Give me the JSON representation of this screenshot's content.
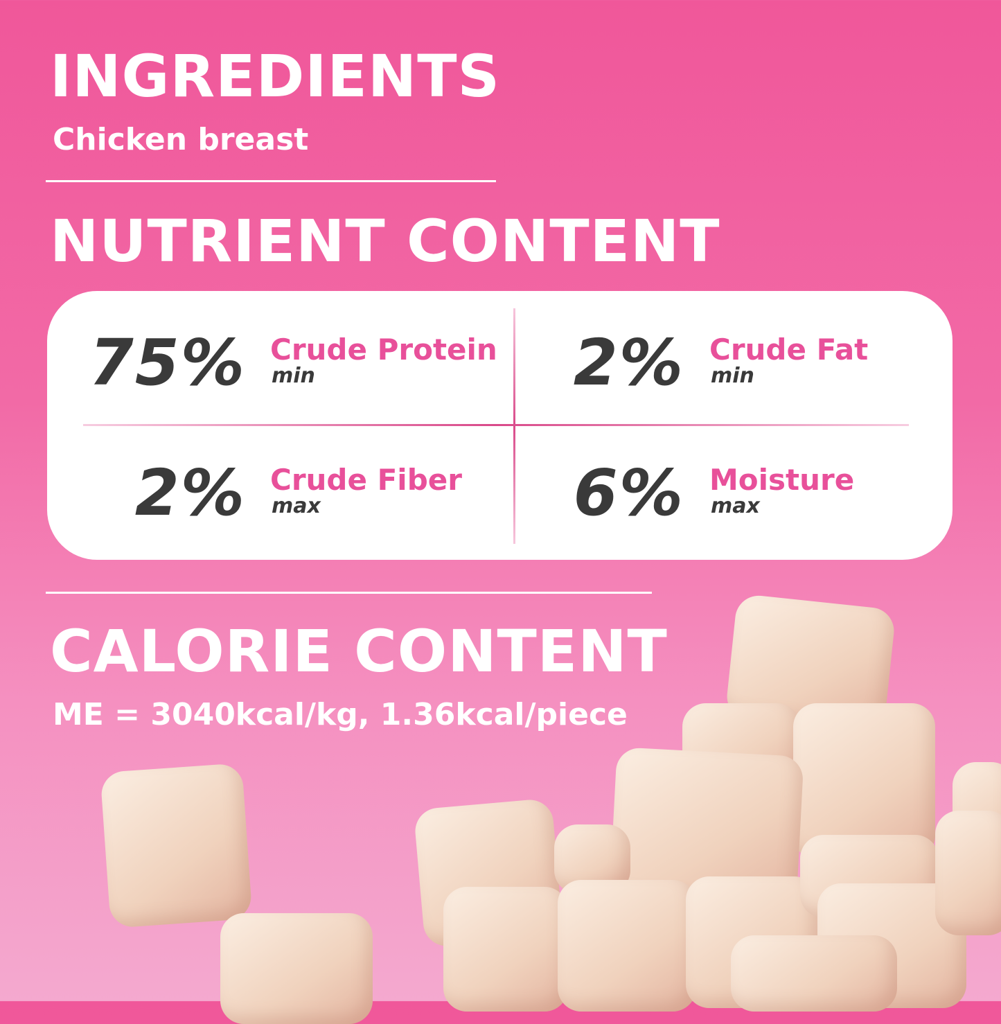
{
  "ingredients": {
    "title": "INGREDIENTS",
    "text": "Chicken breast"
  },
  "nutrients": {
    "title": "NUTRIENT CONTENT",
    "items": [
      {
        "value": "75%",
        "label": "Crude Protein",
        "qualifier": "min"
      },
      {
        "value": "2%",
        "label": "Crude Fat",
        "qualifier": "min"
      },
      {
        "value": "2%",
        "label": "Crude Fiber",
        "qualifier": "max"
      },
      {
        "value": "6%",
        "label": "Moisture",
        "qualifier": "max"
      }
    ]
  },
  "calories": {
    "title": "CALORIE CONTENT",
    "text": "ME = 3040kcal/kg, 1.36kcal/piece"
  },
  "colors": {
    "accent": "#e8509a",
    "number": "#3a3a3a",
    "background_top": "#f0579a",
    "background_bottom": "#f4a9cf"
  },
  "image": "freeze-dried chicken breast cubes"
}
